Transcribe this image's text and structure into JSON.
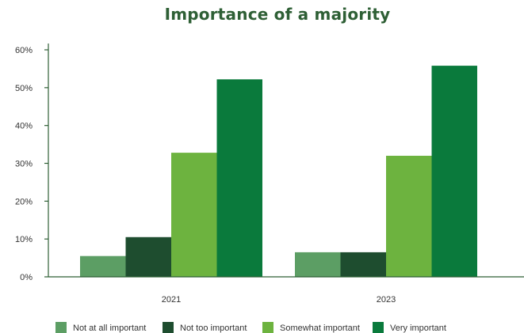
{
  "chart_data": {
    "type": "bar",
    "title": "Importance of a majority",
    "xlabel": "",
    "ylabel": "",
    "categories": [
      "2021",
      "2023"
    ],
    "series": [
      {
        "name": "Not at all important",
        "color": "#5c9e64",
        "values": [
          5.5,
          6.5
        ]
      },
      {
        "name": "Not too important",
        "color": "#1e4d2f",
        "values": [
          10.5,
          6.5
        ]
      },
      {
        "name": "Somewhat important",
        "color": "#6db33f",
        "values": [
          32.8,
          32.0
        ]
      },
      {
        "name": "Very important",
        "color": "#0a7a3c",
        "values": [
          52.2,
          55.8
        ]
      }
    ],
    "ylim": [
      0,
      60
    ],
    "yticks": [
      "0%",
      "10%",
      "20%",
      "30%",
      "40%",
      "50%",
      "60%"
    ],
    "ytick_values": [
      0,
      10,
      20,
      30,
      40,
      50,
      60
    ],
    "grid": false,
    "legend_position": "bottom"
  }
}
